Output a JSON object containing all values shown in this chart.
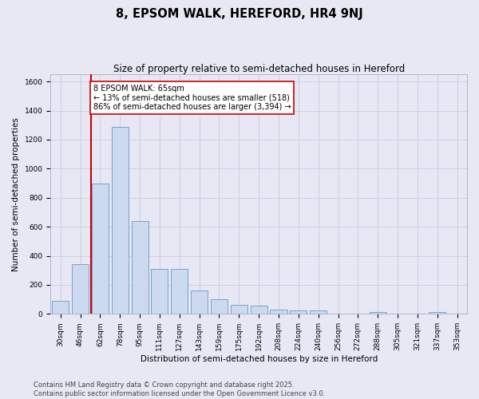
{
  "title": "8, EPSOM WALK, HEREFORD, HR4 9NJ",
  "subtitle": "Size of property relative to semi-detached houses in Hereford",
  "xlabel": "Distribution of semi-detached houses by size in Hereford",
  "ylabel": "Number of semi-detached properties",
  "categories": [
    "30sqm",
    "46sqm",
    "62sqm",
    "78sqm",
    "95sqm",
    "111sqm",
    "127sqm",
    "143sqm",
    "159sqm",
    "175sqm",
    "192sqm",
    "208sqm",
    "224sqm",
    "240sqm",
    "256sqm",
    "272sqm",
    "288sqm",
    "305sqm",
    "321sqm",
    "337sqm",
    "353sqm"
  ],
  "values": [
    90,
    340,
    900,
    1290,
    640,
    310,
    310,
    160,
    100,
    60,
    55,
    30,
    25,
    25,
    0,
    0,
    15,
    0,
    0,
    15,
    0
  ],
  "bar_color": "#ccd9ee",
  "bar_edge_color": "#6699cc",
  "vline_color": "#cc0000",
  "vline_position": 1.55,
  "annotation_text": "8 EPSOM WALK: 65sqm\n← 13% of semi-detached houses are smaller (518)\n86% of semi-detached houses are larger (3,394) →",
  "annotation_box_facecolor": "#ffffff",
  "annotation_box_edgecolor": "#cc0000",
  "ylim": [
    0,
    1650
  ],
  "yticks": [
    0,
    200,
    400,
    600,
    800,
    1000,
    1200,
    1400,
    1600
  ],
  "grid_color": "#c8c8e8",
  "background_color": "#e8e8f4",
  "footer_text": "Contains HM Land Registry data © Crown copyright and database right 2025.\nContains public sector information licensed under the Open Government Licence v3.0.",
  "title_fontsize": 10.5,
  "subtitle_fontsize": 8.5,
  "axis_label_fontsize": 7.5,
  "tick_fontsize": 6.5,
  "annotation_fontsize": 7,
  "footer_fontsize": 6
}
